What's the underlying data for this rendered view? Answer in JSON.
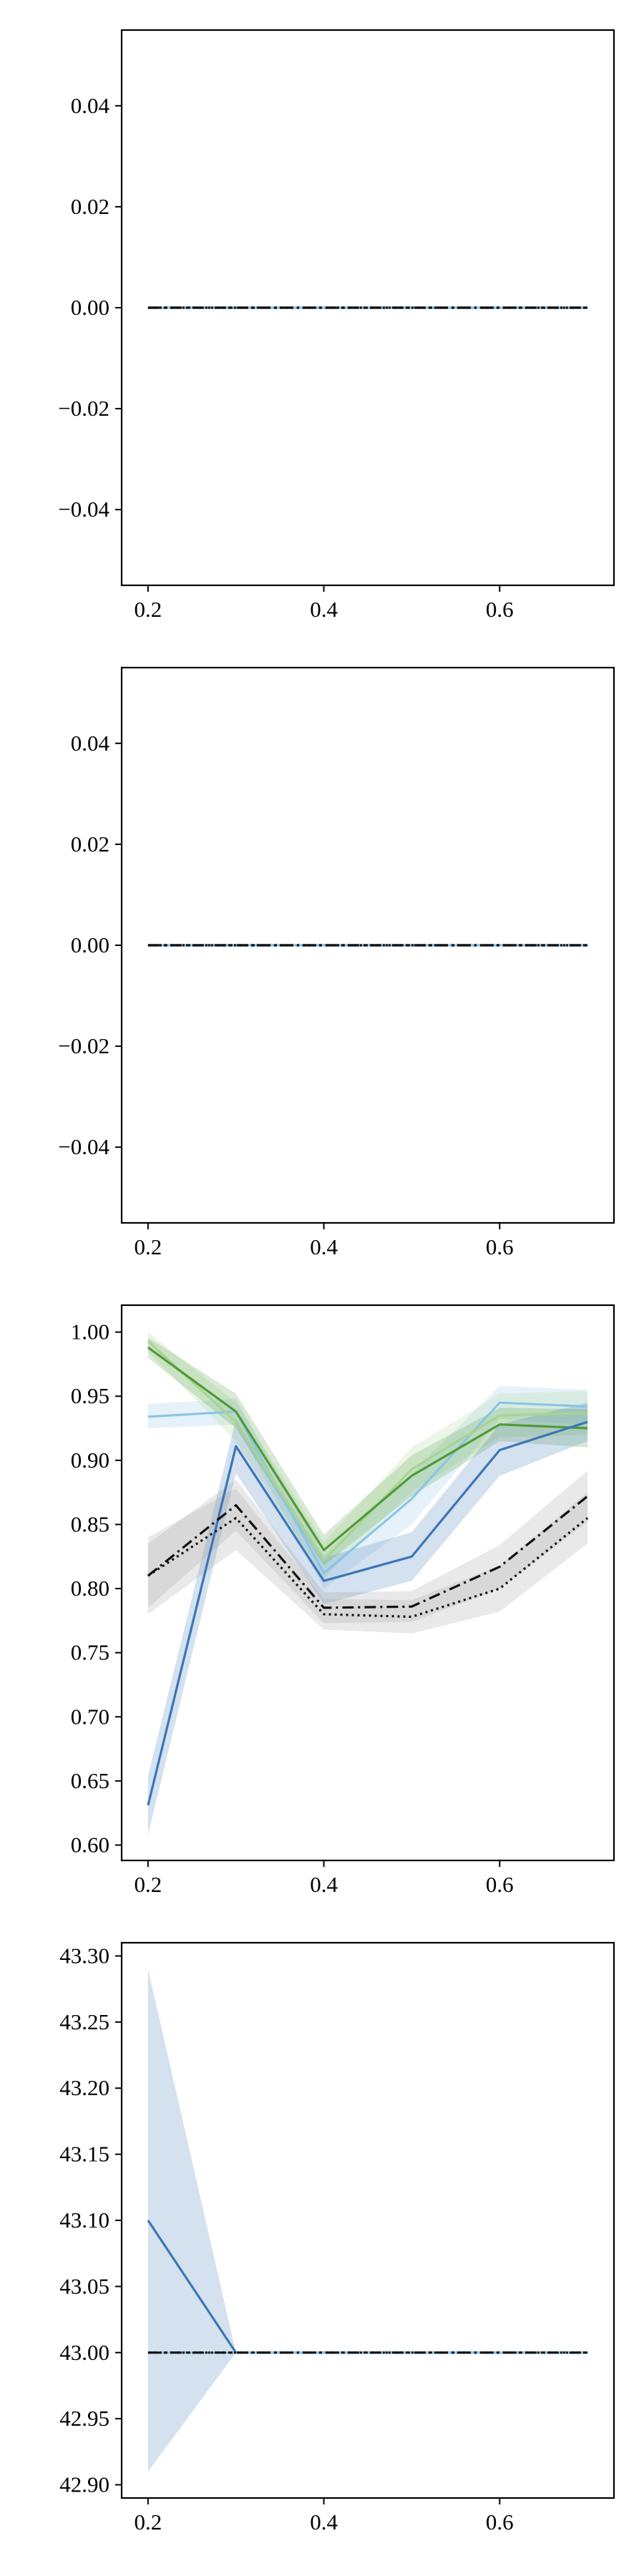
{
  "colors": {
    "dark_blue": "#3b76b8",
    "light_blue": "#8cc4e6",
    "green": "#4f9a3a",
    "light_green": "#a8d491",
    "black": "#111111",
    "gray_band": "#9a9a9a"
  },
  "chart_data": [
    {
      "type": "line",
      "x": [
        0.2,
        0.3,
        0.4,
        0.5,
        0.6,
        0.7
      ],
      "xlim": [
        0.17,
        0.73
      ],
      "xticks": [
        0.2,
        0.4,
        0.6
      ],
      "xtick_labels": [
        "0.2",
        "0.4",
        "0.6"
      ],
      "ylim": [
        -0.055,
        0.055
      ],
      "yticks": [
        -0.04,
        -0.02,
        0.0,
        0.02,
        0.04
      ],
      "ytick_labels": [
        "−0.04",
        "−0.02",
        "0.00",
        "0.02",
        "0.04"
      ],
      "grid": false,
      "series": [
        {
          "color": "#3b76b8",
          "dash": "solid",
          "values": [
            0,
            0,
            0,
            0,
            0,
            0
          ]
        },
        {
          "color": "#8cc4e6",
          "dash": "solid",
          "values": [
            0,
            0,
            0,
            0,
            0,
            0
          ]
        },
        {
          "color": "#111111",
          "dash": "dotted",
          "values": [
            0,
            0,
            0,
            0,
            0,
            0
          ]
        },
        {
          "color": "#111111",
          "dash": "dashdot",
          "values": [
            0,
            0,
            0,
            0,
            0,
            0
          ]
        }
      ]
    },
    {
      "type": "line",
      "x": [
        0.2,
        0.3,
        0.4,
        0.5,
        0.6,
        0.7
      ],
      "xlim": [
        0.17,
        0.73
      ],
      "xticks": [
        0.2,
        0.4,
        0.6
      ],
      "xtick_labels": [
        "0.2",
        "0.4",
        "0.6"
      ],
      "ylim": [
        -0.055,
        0.055
      ],
      "yticks": [
        -0.04,
        -0.02,
        0.0,
        0.02,
        0.04
      ],
      "ytick_labels": [
        "−0.04",
        "−0.02",
        "0.00",
        "0.02",
        "0.04"
      ],
      "grid": false,
      "series": [
        {
          "color": "#3b76b8",
          "dash": "solid",
          "values": [
            0,
            0,
            0,
            0,
            0,
            0
          ]
        },
        {
          "color": "#8cc4e6",
          "dash": "solid",
          "values": [
            0,
            0,
            0,
            0,
            0,
            0
          ]
        },
        {
          "color": "#111111",
          "dash": "dotted",
          "values": [
            0,
            0,
            0,
            0,
            0,
            0
          ]
        },
        {
          "color": "#111111",
          "dash": "dashdot",
          "values": [
            0,
            0,
            0,
            0,
            0,
            0
          ]
        }
      ]
    },
    {
      "type": "line",
      "x": [
        0.2,
        0.3,
        0.4,
        0.5,
        0.6,
        0.7
      ],
      "xlim": [
        0.17,
        0.73
      ],
      "xticks": [
        0.2,
        0.4,
        0.6
      ],
      "xtick_labels": [
        "0.2",
        "0.4",
        "0.6"
      ],
      "ylim": [
        0.588,
        1.021
      ],
      "yticks": [
        0.6,
        0.65,
        0.7,
        0.75,
        0.8,
        0.85,
        0.9,
        0.95,
        1.0
      ],
      "ytick_labels": [
        "0.60",
        "0.65",
        "0.70",
        "0.75",
        "0.80",
        "0.85",
        "0.90",
        "0.95",
        "1.00"
      ],
      "grid": false,
      "series": [
        {
          "color": "#8cc4e6",
          "dash": "solid",
          "values": [
            0.934,
            0.938,
            0.812,
            0.87,
            0.945,
            0.942
          ],
          "band_lower": [
            0.925,
            0.928,
            0.8,
            0.85,
            0.932,
            0.928
          ],
          "band_upper": [
            0.944,
            0.948,
            0.826,
            0.89,
            0.958,
            0.955
          ],
          "band_color": "#8cc4e6"
        },
        {
          "color": "#a8d491",
          "dash": "solid",
          "values": [
            0.993,
            0.93,
            0.822,
            0.893,
            0.935,
            0.937
          ],
          "band_lower": [
            0.985,
            0.915,
            0.808,
            0.876,
            0.918,
            0.92
          ],
          "band_upper": [
            1.0,
            0.945,
            0.836,
            0.91,
            0.952,
            0.954
          ],
          "band_color": "#a8d491"
        },
        {
          "color": "#4f9a3a",
          "dash": "solid",
          "values": [
            0.988,
            0.938,
            0.83,
            0.888,
            0.928,
            0.925
          ],
          "band_lower": [
            0.98,
            0.925,
            0.818,
            0.872,
            0.915,
            0.91
          ],
          "band_upper": [
            0.996,
            0.952,
            0.842,
            0.904,
            0.941,
            0.94
          ],
          "band_color": "#4f9a3a"
        },
        {
          "color": "#3b76b8",
          "dash": "solid",
          "values": [
            0.631,
            0.911,
            0.806,
            0.825,
            0.908,
            0.93
          ],
          "band_lower": [
            0.608,
            0.89,
            0.788,
            0.806,
            0.888,
            0.915
          ],
          "band_upper": [
            0.654,
            0.932,
            0.824,
            0.844,
            0.928,
            0.945
          ],
          "band_color": "#3b76b8"
        },
        {
          "color": "#111111",
          "dash": "dotted",
          "values": [
            0.81,
            0.855,
            0.78,
            0.778,
            0.8,
            0.855
          ],
          "band_lower": [
            0.78,
            0.83,
            0.768,
            0.765,
            0.782,
            0.835
          ],
          "band_upper": [
            0.84,
            0.878,
            0.792,
            0.791,
            0.818,
            0.875
          ],
          "band_color": "#9a9a9a"
        },
        {
          "color": "#111111",
          "dash": "dashdot",
          "values": [
            0.81,
            0.865,
            0.785,
            0.786,
            0.817,
            0.872
          ],
          "band_lower": [
            0.785,
            0.845,
            0.773,
            0.774,
            0.8,
            0.852
          ],
          "band_upper": [
            0.835,
            0.885,
            0.797,
            0.798,
            0.834,
            0.892
          ],
          "band_color": "#9a9a9a"
        }
      ]
    },
    {
      "type": "line",
      "x": [
        0.2,
        0.3,
        0.4,
        0.5,
        0.6,
        0.7
      ],
      "xlim": [
        0.17,
        0.73
      ],
      "xticks": [
        0.2,
        0.4,
        0.6
      ],
      "xtick_labels": [
        "0.2",
        "0.4",
        "0.6"
      ],
      "ylim": [
        42.89,
        43.31
      ],
      "yticks": [
        42.9,
        42.95,
        43.0,
        43.05,
        43.1,
        43.15,
        43.2,
        43.25,
        43.3
      ],
      "ytick_labels": [
        "42.90",
        "42.95",
        "43.00",
        "43.05",
        "43.10",
        "43.15",
        "43.20",
        "43.25",
        "43.30"
      ],
      "grid": false,
      "series": [
        {
          "color": "#3b76b8",
          "dash": "solid",
          "values": [
            43.1,
            43.0,
            43.0,
            43.0,
            43.0,
            43.0
          ],
          "band_lower": [
            42.91,
            43.0,
            43.0,
            43.0,
            43.0,
            43.0
          ],
          "band_upper": [
            43.29,
            43.0,
            43.0,
            43.0,
            43.0,
            43.0
          ],
          "band_color": "#3b76b8"
        },
        {
          "color": "#8cc4e6",
          "dash": "solid",
          "values": [
            43.0,
            43.0,
            43.0,
            43.0,
            43.0,
            43.0
          ]
        },
        {
          "color": "#111111",
          "dash": "dotted",
          "values": [
            43.0,
            43.0,
            43.0,
            43.0,
            43.0,
            43.0
          ]
        },
        {
          "color": "#111111",
          "dash": "dashdot",
          "values": [
            43.0,
            43.0,
            43.0,
            43.0,
            43.0,
            43.0
          ]
        }
      ]
    }
  ]
}
